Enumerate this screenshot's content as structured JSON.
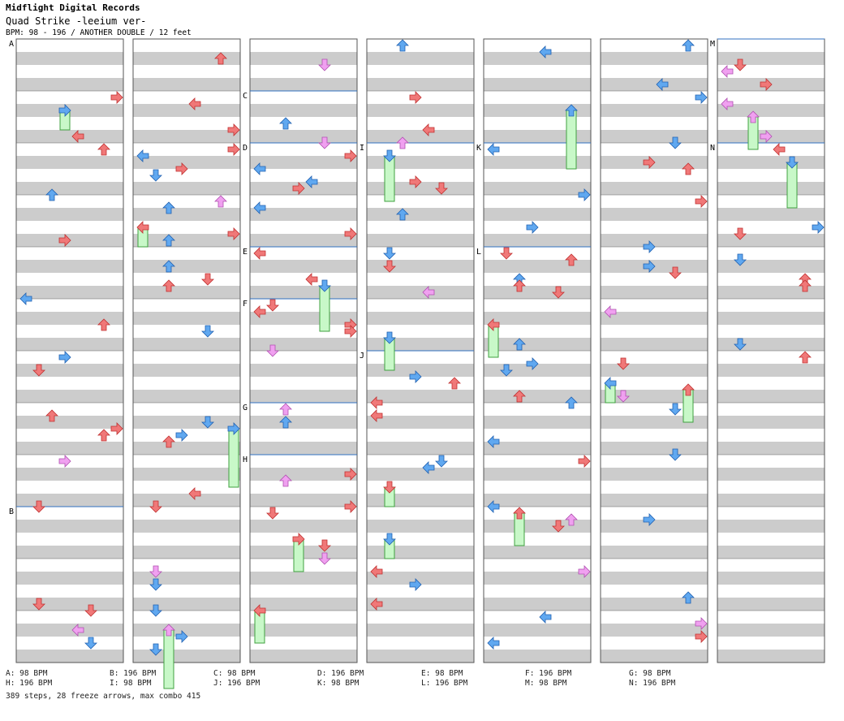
{
  "header": {
    "publisher": "Midflight Digital Records",
    "song": "Quad Strike -leeium ver-",
    "meta": "BPM: 98 - 196 / ANOTHER DOUBLE / 12 feet"
  },
  "section_labels": [
    "A",
    "B",
    "C",
    "D",
    "E",
    "F",
    "G",
    "H",
    "I",
    "J",
    "K",
    "L",
    "M",
    "N"
  ],
  "bpm_legend": [
    {
      "text": "A: 98 BPM"
    },
    {
      "text": "B: 196 BPM"
    },
    {
      "text": "C: 98 BPM"
    },
    {
      "text": "D: 196 BPM"
    },
    {
      "text": "E: 98 BPM"
    },
    {
      "text": "F: 196 BPM"
    },
    {
      "text": "G: 98 BPM"
    },
    {
      "text": "H: 196 BPM"
    },
    {
      "text": "I: 98 BPM"
    },
    {
      "text": "J: 196 BPM"
    },
    {
      "text": "K: 98 BPM"
    },
    {
      "text": "L: 196 BPM"
    },
    {
      "text": "M: 98 BPM"
    },
    {
      "text": "N: 196 BPM"
    }
  ],
  "stats": "389 steps, 28 freeze arrows, max combo 415",
  "colors": {
    "red": "#f07878",
    "blue": "#60a8f0",
    "pink": "#f0a0f0",
    "freeze": "#c8f8c8",
    "freeze_border": "#40a040",
    "band": "#cccccc",
    "divider": "#3070c0"
  }
}
